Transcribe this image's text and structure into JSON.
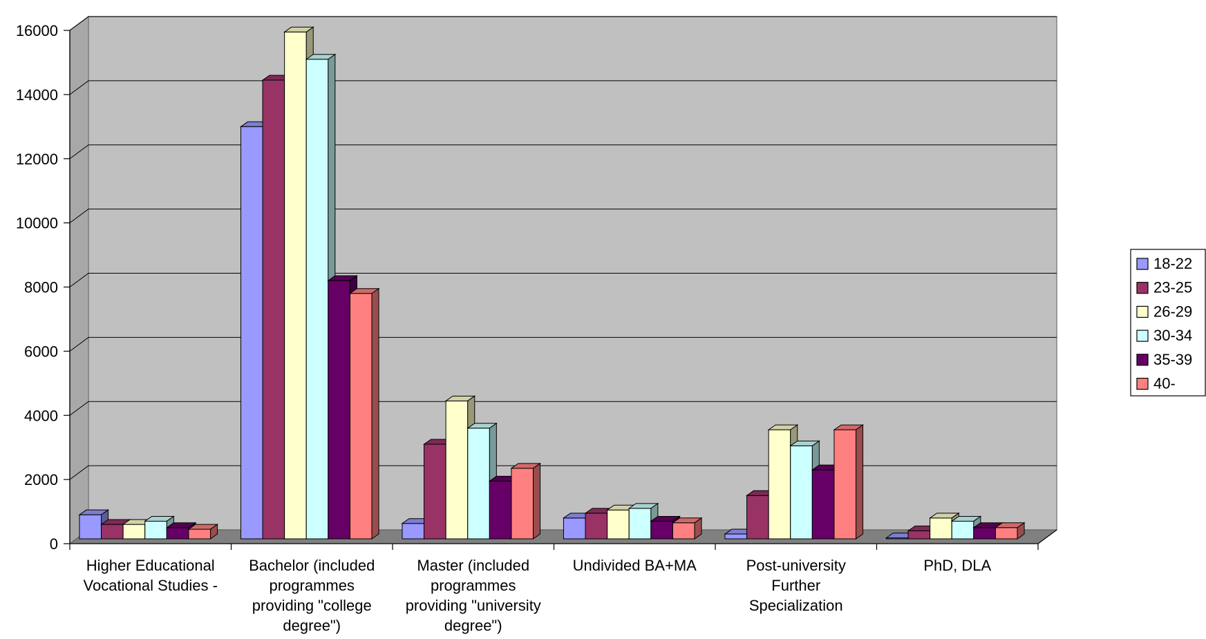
{
  "chart_data": {
    "type": "bar",
    "title": "",
    "xlabel": "",
    "ylabel": "",
    "ylim": [
      0,
      16000
    ],
    "yticks": [
      0,
      2000,
      4000,
      6000,
      8000,
      10000,
      12000,
      14000,
      16000
    ],
    "grid": true,
    "legend_position": "right",
    "background_color": "#c0c0c0",
    "categories": [
      [
        "Higher Educational",
        "Vocational Studies -"
      ],
      [
        "Bachelor (included",
        "programmes",
        "providing \"college",
        "degree\")"
      ],
      [
        "Master (included",
        "programmes",
        "providing \"university",
        "degree\")"
      ],
      [
        "Undivided BA+MA"
      ],
      [
        "Post-university",
        "Further",
        "Specialization"
      ],
      [
        "PhD, DLA"
      ]
    ],
    "series": [
      {
        "name": "18-22",
        "color": "#9999ff",
        "values": [
          750,
          12850,
          480,
          650,
          150,
          30
        ]
      },
      {
        "name": "23-25",
        "color": "#993366",
        "values": [
          450,
          14300,
          2950,
          800,
          1350,
          250
        ]
      },
      {
        "name": "26-29",
        "color": "#ffffcc",
        "values": [
          450,
          15800,
          4300,
          900,
          3400,
          650
        ]
      },
      {
        "name": "30-34",
        "color": "#ccffff",
        "values": [
          550,
          14950,
          3450,
          950,
          2900,
          550
        ]
      },
      {
        "name": "35-39",
        "color": "#660066",
        "values": [
          350,
          8050,
          1800,
          550,
          2150,
          350
        ]
      },
      {
        "name": "40-",
        "color": "#ff8080",
        "values": [
          300,
          7650,
          2200,
          500,
          3400,
          350
        ]
      }
    ]
  }
}
